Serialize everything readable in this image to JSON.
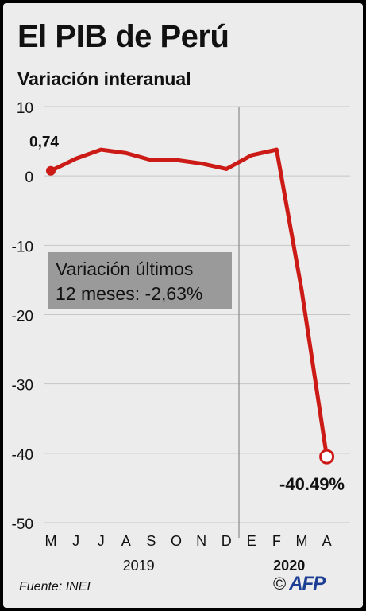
{
  "title": "El PIB de Perú",
  "subtitle": "Variación interanual",
  "annotation": {
    "line1": "Variación últimos",
    "line2": "12 meses: -2,63%"
  },
  "source": "Fuente: INEI",
  "logo": {
    "copyright": "©",
    "brand": "AFP",
    "brand_color": "#1c3e94"
  },
  "chart_data": {
    "type": "line",
    "categories": [
      "M",
      "J",
      "J",
      "A",
      "S",
      "O",
      "N",
      "D",
      "E",
      "F",
      "M",
      "A"
    ],
    "series": [
      {
        "values": [
          0.74,
          2.5,
          3.8,
          3.3,
          2.3,
          2.3,
          1.8,
          1.0,
          3.0,
          3.8,
          -16.5,
          -40.49
        ],
        "color": "#cc1b17"
      }
    ],
    "year_labels": [
      {
        "text": "2019",
        "bold": false
      },
      {
        "text": "2020",
        "bold": true
      }
    ],
    "y_ticks": [
      "10",
      "0",
      "-10",
      "-20",
      "-30",
      "-40",
      "-50"
    ],
    "ylim": [
      -50,
      10
    ],
    "grid": true,
    "point_labels": [
      {
        "text": "0,74",
        "index": 0
      },
      {
        "text": "-40.49%",
        "index": 11
      }
    ],
    "colors": {
      "line": "#cc1b17",
      "grid": "#c6c6c6",
      "divider": "#8a8a8a"
    }
  }
}
